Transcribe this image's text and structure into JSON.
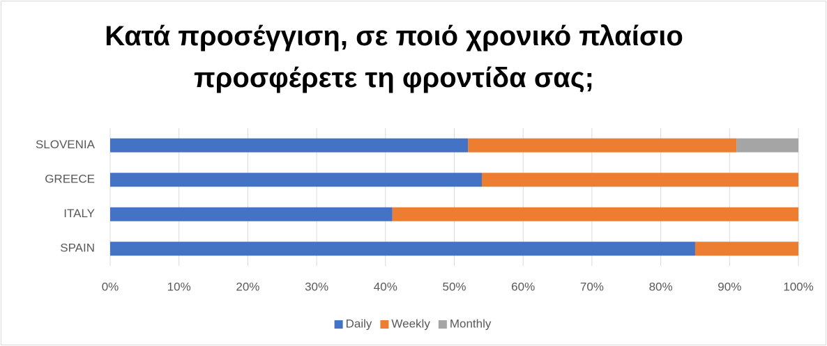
{
  "chart_data": {
    "type": "stacked_bar_horizontal",
    "title": "Κατά προσέγγιση, σε ποιό χρονικό πλαίσιο προσφέρετε τη φροντίδα σας;",
    "categories": [
      "SLOVENIA",
      "GREECE",
      "ITALY",
      "SPAIN"
    ],
    "series": [
      {
        "name": "Daily",
        "color": "#4472c4",
        "values": [
          52,
          54,
          41,
          85
        ]
      },
      {
        "name": "Weekly",
        "color": "#ed7d31",
        "values": [
          39,
          46,
          59,
          15
        ]
      },
      {
        "name": "Monthly",
        "color": "#a5a5a5",
        "values": [
          9,
          0,
          0,
          0
        ]
      }
    ],
    "xlim": [
      0,
      100
    ],
    "xticks": [
      {
        "value": 0,
        "label": "0%"
      },
      {
        "value": 10,
        "label": "10%"
      },
      {
        "value": 20,
        "label": "20%"
      },
      {
        "value": 30,
        "label": "30%"
      },
      {
        "value": 40,
        "label": "40%"
      },
      {
        "value": 50,
        "label": "50%"
      },
      {
        "value": 60,
        "label": "60%"
      },
      {
        "value": 70,
        "label": "70%"
      },
      {
        "value": 80,
        "label": "80%"
      },
      {
        "value": 90,
        "label": "90%"
      },
      {
        "value": 100,
        "label": "100%"
      }
    ],
    "grid": true,
    "legend": "bottom"
  }
}
